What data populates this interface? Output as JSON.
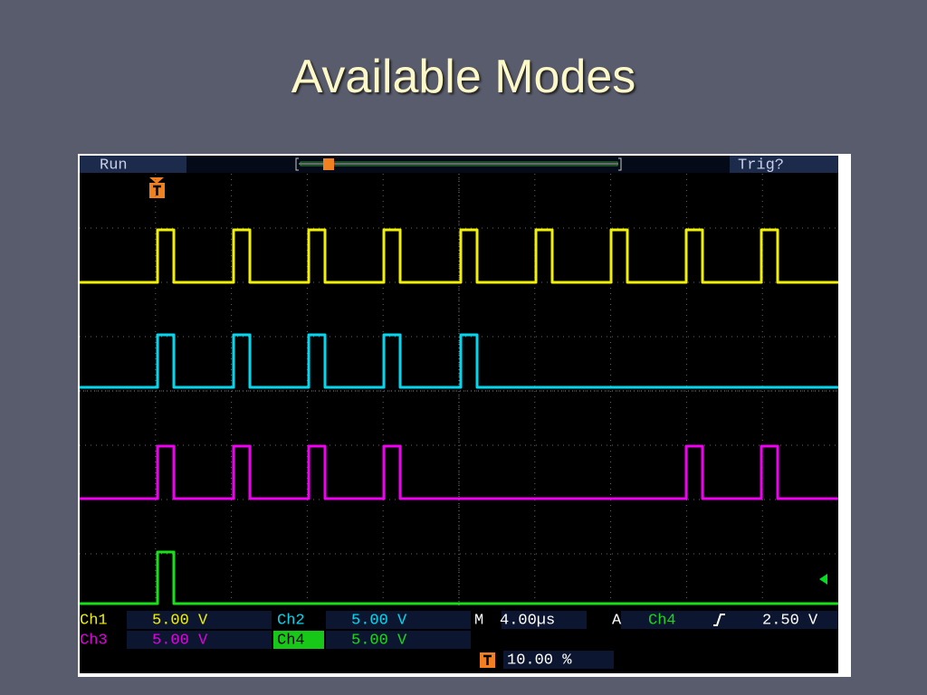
{
  "header": {
    "title": "Available Modes"
  },
  "scope": {
    "status": {
      "state": "Run",
      "trigger": "Trig?"
    },
    "readout": {
      "ch1": {
        "label": "Ch1",
        "scale": "5.00 V"
      },
      "ch2": {
        "label": "Ch2",
        "scale": "5.00 V"
      },
      "ch3": {
        "label": "Ch3",
        "scale": "5.00 V"
      },
      "ch4": {
        "label": "Ch4",
        "scale": "5.00 V"
      },
      "timebase": {
        "label": "M",
        "value": "4.00µs"
      },
      "trigger": {
        "label": "A",
        "source": "Ch4",
        "level": "2.50 V"
      },
      "position": "10.00 %"
    }
  }
}
